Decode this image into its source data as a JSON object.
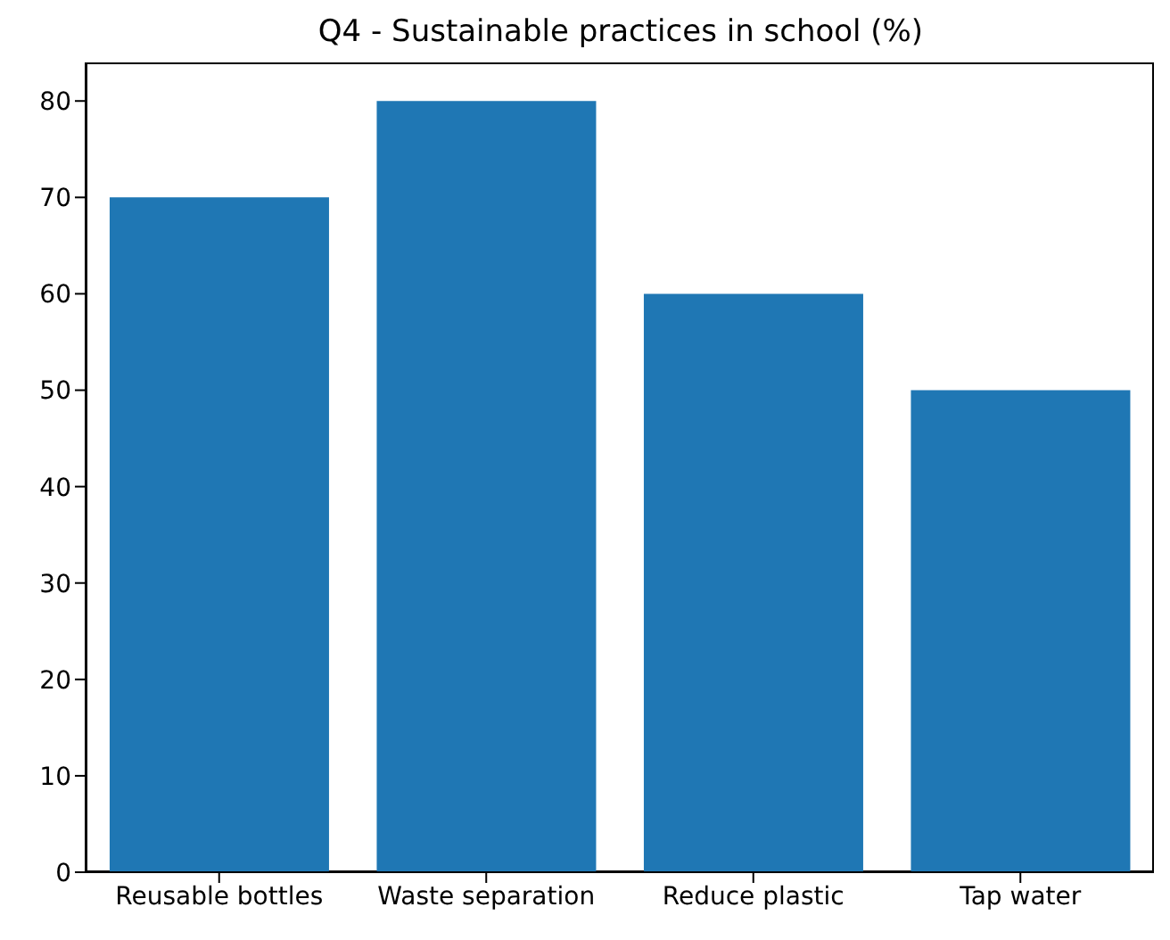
{
  "chart_data": {
    "type": "bar",
    "title": "Q4 - Sustainable practices in school (%)",
    "categories": [
      "Reusable bottles",
      "Waste separation",
      "Reduce plastic",
      "Tap water"
    ],
    "values": [
      70,
      80,
      60,
      50
    ],
    "color": "#1f77b4",
    "ylim": [
      0,
      84
    ],
    "yticks": [
      0,
      10,
      20,
      30,
      40,
      50,
      60,
      70,
      80
    ],
    "grid": false
  }
}
